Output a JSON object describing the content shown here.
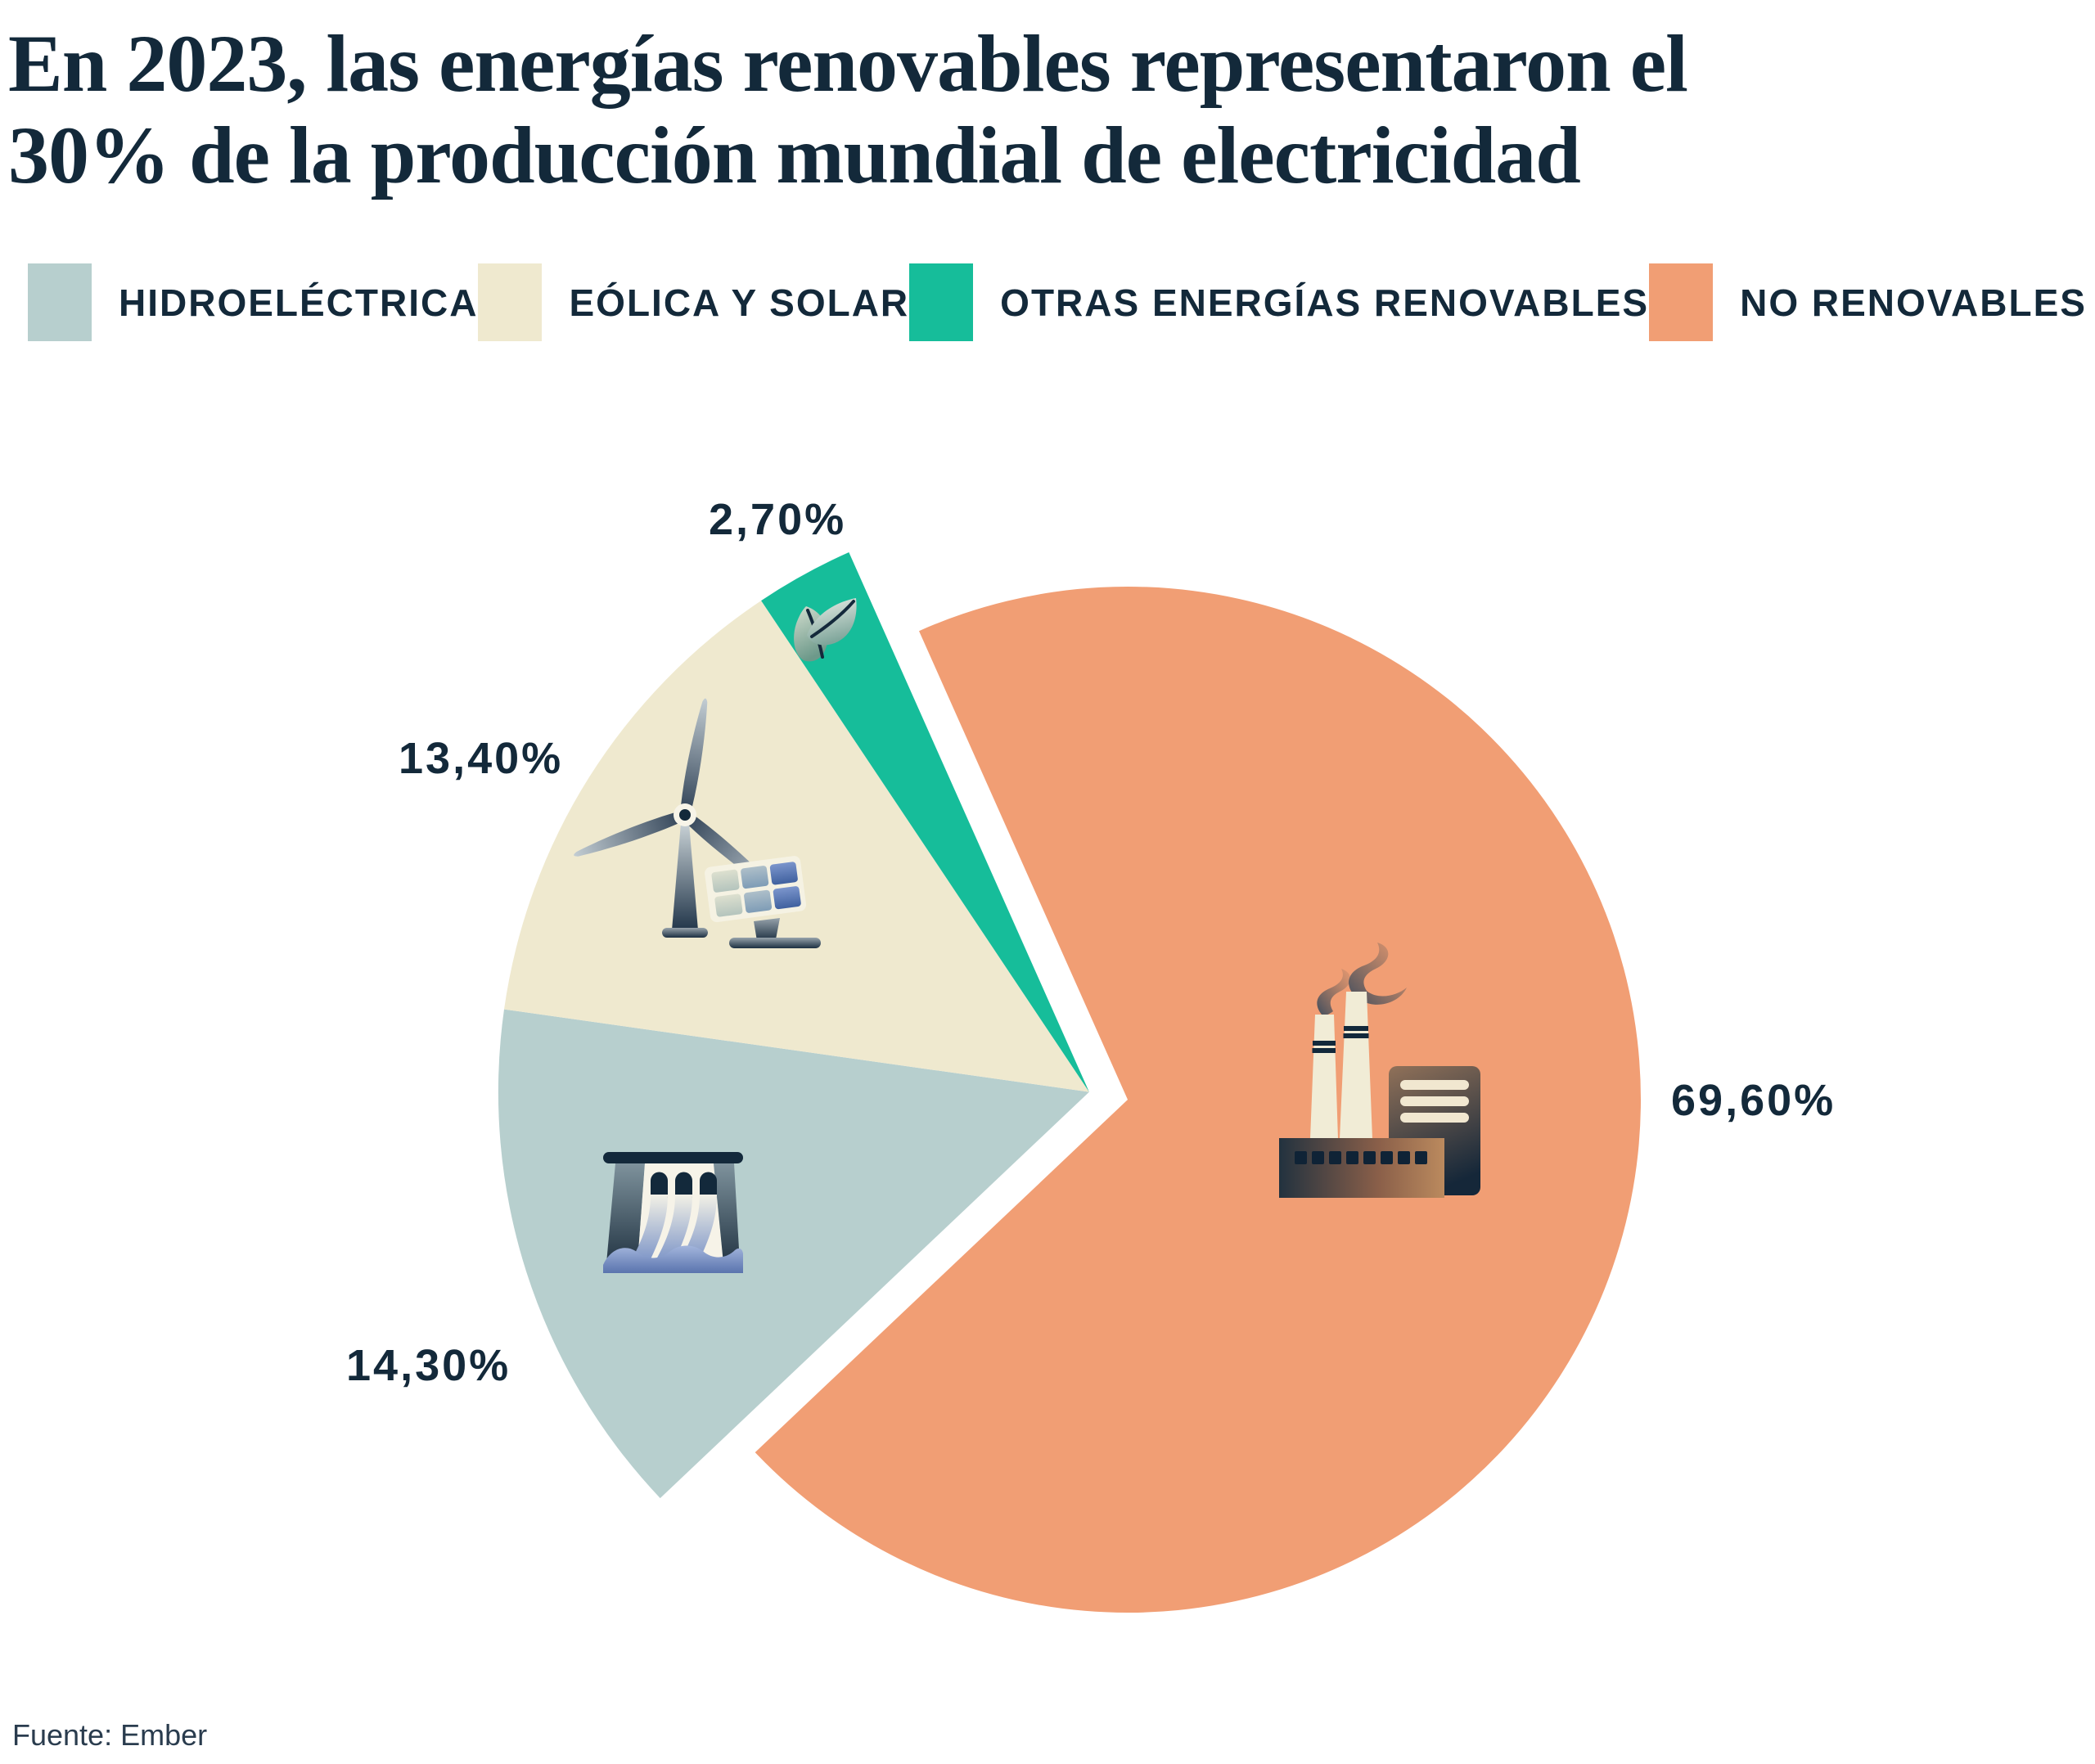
{
  "header": {
    "title": "En 2023, las energías renovables representaron el 30% de la producción mundial de electricidad",
    "title_lines": [
      "En 2023, las energías renovables representaron el",
      "30% de la producción mundial de electricidad"
    ]
  },
  "legend": {
    "items": [
      {
        "label": "HIDROELÉCTRICA"
      },
      {
        "label": "EÓLICA Y SOLAR"
      },
      {
        "label": "OTRAS ENERGÍAS RENOVABLES"
      },
      {
        "label": "NO RENOVABLES"
      }
    ]
  },
  "footer": {
    "source": "Fuente: Ember"
  },
  "colors": {
    "text": "#13293A",
    "background": "#FFFFFF",
    "hidroelectrica": "#B7CFCE",
    "eolica_solar": "#EFE9CF",
    "otras_renovables": "#16BD9A",
    "no_renovables": "#F19E74"
  },
  "chart_data": {
    "type": "pie",
    "title": "En 2023, las energías renovables representaron el 30% de la producción mundial de electricidad",
    "source": "Fuente: Ember",
    "unit": "%",
    "legend_position": "top",
    "start_angle_deg": -24,
    "exploded_group": "renovables",
    "slices": [
      {
        "id": "hidroelectrica",
        "label": "Hidroeléctrica",
        "value": 14.3,
        "display": "14,30%",
        "color": "#B7CFCE",
        "exploded": true,
        "icon": "dam-icon"
      },
      {
        "id": "eolica-solar",
        "label": "Eólica y solar",
        "value": 13.4,
        "display": "13,40%",
        "color": "#EFE9CF",
        "exploded": true,
        "icon": "wind-turbine-solar-panel-icon"
      },
      {
        "id": "otras-renovables",
        "label": "Otras energías renovables",
        "value": 2.7,
        "display": "2,70%",
        "color": "#16BD9A",
        "exploded": true,
        "icon": "leaf-icon"
      },
      {
        "id": "no-renovables",
        "label": "No renovables",
        "value": 69.6,
        "display": "69,60%",
        "color": "#F19E74",
        "exploded": false,
        "icon": "factory-icon"
      }
    ]
  }
}
